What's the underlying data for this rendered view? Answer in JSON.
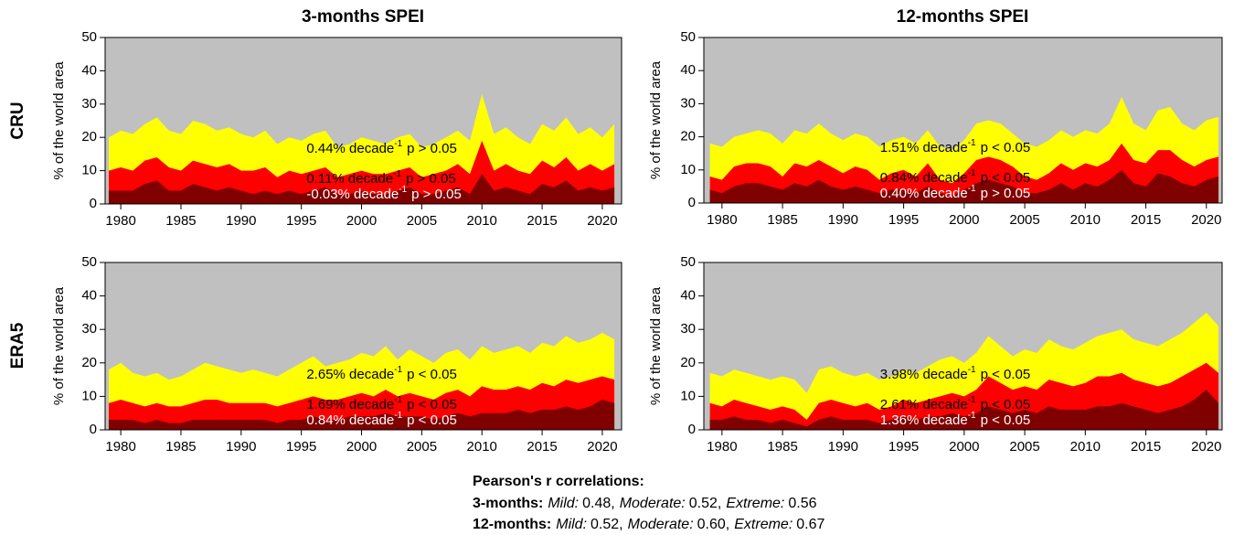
{
  "column_titles": [
    "3-months SPEI",
    "12-months SPEI"
  ],
  "row_labels": [
    "CRU",
    "ERA5"
  ],
  "footer": {
    "heading": "Pearson's r correlations:",
    "lines": [
      {
        "label": "3-months:",
        "items": [
          {
            "name": "Mild:",
            "value": "0.48"
          },
          {
            "name": "Moderate:",
            "value": "0.52"
          },
          {
            "name": "Extreme:",
            "value": "0.56"
          }
        ]
      },
      {
        "label": "12-months:",
        "items": [
          {
            "name": "Mild:",
            "value": "0.52"
          },
          {
            "name": "Moderate:",
            "value": "0.60"
          },
          {
            "name": "Extreme:",
            "value": "0.67"
          }
        ]
      }
    ]
  },
  "chart_data": [
    {
      "type": "area",
      "y_label": "% of the world area",
      "background": "#c0c0c0",
      "xlim": [
        1978.7,
        2021.6
      ],
      "xticks": [
        1980,
        1985,
        1990,
        1995,
        2000,
        2005,
        2010,
        2015,
        2020
      ],
      "ylim": [
        0,
        50
      ],
      "yticks": [
        0,
        10,
        20,
        30,
        40,
        50
      ],
      "x": [
        1979,
        1980,
        1981,
        1982,
        1983,
        1984,
        1985,
        1986,
        1987,
        1988,
        1989,
        1990,
        1991,
        1992,
        1993,
        1994,
        1995,
        1996,
        1997,
        1998,
        1999,
        2000,
        2001,
        2002,
        2003,
        2004,
        2005,
        2006,
        2007,
        2008,
        2009,
        2010,
        2011,
        2012,
        2013,
        2014,
        2015,
        2016,
        2017,
        2018,
        2019,
        2020,
        2021
      ],
      "series": [
        {
          "color": "#ffff00",
          "values": [
            20,
            22,
            21,
            24,
            26,
            22,
            21,
            25,
            24,
            22,
            23,
            21,
            20,
            22,
            18,
            20,
            19,
            21,
            22,
            17,
            18,
            20,
            19,
            18,
            20,
            21,
            17,
            18,
            20,
            22,
            19,
            33,
            21,
            23,
            20,
            18,
            24,
            22,
            26,
            21,
            23,
            20,
            24
          ]
        },
        {
          "color": "#ff0000",
          "values": [
            10,
            11,
            10,
            13,
            14,
            11,
            10,
            13,
            12,
            11,
            12,
            10,
            10,
            11,
            8,
            10,
            9,
            10,
            11,
            8,
            9,
            10,
            9,
            9,
            10,
            11,
            8,
            9,
            10,
            12,
            9,
            19,
            10,
            12,
            10,
            9,
            13,
            11,
            14,
            10,
            12,
            10,
            12
          ]
        },
        {
          "color": "#800000",
          "values": [
            4,
            4,
            4,
            6,
            7,
            4,
            4,
            6,
            5,
            4,
            5,
            4,
            3,
            4,
            3,
            4,
            3,
            4,
            5,
            3,
            3,
            4,
            3,
            3,
            4,
            5,
            3,
            3,
            4,
            5,
            3,
            9,
            4,
            5,
            4,
            3,
            6,
            5,
            7,
            4,
            5,
            4,
            5
          ]
        }
      ],
      "annotations": [
        {
          "text": "0.44% decade",
          "sup": "-1",
          "p": "p > 0.05",
          "color": "#000000"
        },
        {
          "text": "0.11% decade",
          "sup": "-1",
          "p": "p > 0.05",
          "color": "#000000"
        },
        {
          "text": "-0.03% decade",
          "sup": "-1",
          "p": "p > 0.05",
          "color": "#ffffff"
        }
      ]
    },
    {
      "type": "area",
      "y_label": "% of the world area",
      "background": "#c0c0c0",
      "xlim": [
        1978.5,
        2021.3
      ],
      "xticks": [
        1980,
        1985,
        1990,
        1995,
        2000,
        2005,
        2010,
        2015,
        2020
      ],
      "ylim": [
        0,
        50
      ],
      "yticks": [
        0,
        10,
        20,
        30,
        40,
        50
      ],
      "x": [
        1979,
        1980,
        1981,
        1982,
        1983,
        1984,
        1985,
        1986,
        1987,
        1988,
        1989,
        1990,
        1991,
        1992,
        1993,
        1994,
        1995,
        1996,
        1997,
        1998,
        1999,
        2000,
        2001,
        2002,
        2003,
        2004,
        2005,
        2006,
        2007,
        2008,
        2009,
        2010,
        2011,
        2012,
        2013,
        2014,
        2015,
        2016,
        2017,
        2018,
        2019,
        2020,
        2021
      ],
      "series": [
        {
          "color": "#ffff00",
          "values": [
            18,
            17,
            20,
            21,
            22,
            21,
            18,
            22,
            21,
            24,
            21,
            19,
            21,
            20,
            17,
            19,
            20,
            18,
            22,
            17,
            16,
            19,
            24,
            25,
            24,
            21,
            18,
            17,
            19,
            22,
            20,
            22,
            21,
            24,
            32,
            24,
            22,
            28,
            29,
            24,
            22,
            25,
            26
          ]
        },
        {
          "color": "#ff0000",
          "values": [
            8,
            7,
            11,
            12,
            12,
            11,
            8,
            12,
            11,
            13,
            11,
            9,
            11,
            10,
            7,
            9,
            10,
            8,
            12,
            7,
            6,
            9,
            13,
            14,
            13,
            11,
            8,
            7,
            9,
            12,
            10,
            12,
            11,
            13,
            18,
            13,
            12,
            16,
            16,
            13,
            11,
            13,
            14
          ]
        },
        {
          "color": "#800000",
          "values": [
            4,
            3,
            5,
            6,
            6,
            5,
            4,
            6,
            5,
            7,
            5,
            4,
            5,
            4,
            3,
            4,
            4,
            3,
            5,
            3,
            2,
            4,
            6,
            7,
            6,
            5,
            3,
            3,
            4,
            6,
            4,
            6,
            5,
            7,
            10,
            6,
            5,
            9,
            8,
            6,
            5,
            7,
            8
          ]
        }
      ],
      "annotations": [
        {
          "text": "1.51% decade",
          "sup": "-1",
          "p": "p < 0.05",
          "color": "#000000"
        },
        {
          "text": "0.84% decade",
          "sup": "-1",
          "p": "p < 0.05",
          "color": "#000000"
        },
        {
          "text": "0.40% decade",
          "sup": "-1",
          "p": "p > 0.05",
          "color": "#ffffff"
        }
      ]
    },
    {
      "type": "area",
      "y_label": "% of the world area",
      "background": "#c0c0c0",
      "xlim": [
        1978.7,
        2021.6
      ],
      "xticks": [
        1980,
        1985,
        1990,
        1995,
        2000,
        2005,
        2010,
        2015,
        2020
      ],
      "ylim": [
        0,
        50
      ],
      "yticks": [
        0,
        10,
        20,
        30,
        40,
        50
      ],
      "x": [
        1979,
        1980,
        1981,
        1982,
        1983,
        1984,
        1985,
        1986,
        1987,
        1988,
        1989,
        1990,
        1991,
        1992,
        1993,
        1994,
        1995,
        1996,
        1997,
        1998,
        1999,
        2000,
        2001,
        2002,
        2003,
        2004,
        2005,
        2006,
        2007,
        2008,
        2009,
        2010,
        2011,
        2012,
        2013,
        2014,
        2015,
        2016,
        2017,
        2018,
        2019,
        2020,
        2021
      ],
      "series": [
        {
          "color": "#ffff00",
          "values": [
            18,
            20,
            17,
            16,
            17,
            15,
            16,
            18,
            20,
            19,
            18,
            17,
            18,
            17,
            16,
            18,
            20,
            22,
            19,
            20,
            21,
            23,
            22,
            25,
            21,
            24,
            22,
            20,
            23,
            24,
            21,
            25,
            23,
            24,
            25,
            23,
            26,
            25,
            28,
            26,
            27,
            29,
            27
          ]
        },
        {
          "color": "#ff0000",
          "values": [
            8,
            9,
            8,
            7,
            8,
            7,
            7,
            8,
            9,
            9,
            8,
            8,
            8,
            8,
            7,
            8,
            9,
            10,
            9,
            9,
            10,
            11,
            10,
            12,
            10,
            11,
            10,
            9,
            11,
            12,
            10,
            13,
            12,
            12,
            13,
            12,
            14,
            13,
            15,
            14,
            15,
            16,
            15
          ]
        },
        {
          "color": "#800000",
          "values": [
            3,
            3,
            3,
            2,
            3,
            2,
            2,
            3,
            3,
            3,
            3,
            3,
            3,
            3,
            2,
            3,
            3,
            4,
            3,
            3,
            4,
            4,
            4,
            5,
            4,
            4,
            4,
            3,
            4,
            5,
            4,
            5,
            5,
            5,
            6,
            5,
            6,
            6,
            7,
            6,
            7,
            9,
            8
          ]
        }
      ],
      "annotations": [
        {
          "text": "2.65% decade",
          "sup": "-1",
          "p": "p < 0.05",
          "color": "#000000"
        },
        {
          "text": "1.69% decade",
          "sup": "-1",
          "p": "p < 0.05",
          "color": "#000000"
        },
        {
          "text": "0.84% decade",
          "sup": "-1",
          "p": "p < 0.05",
          "color": "#ffffff"
        }
      ]
    },
    {
      "type": "area",
      "y_label": "% of the world area",
      "background": "#c0c0c0",
      "xlim": [
        1978.5,
        2021.3
      ],
      "xticks": [
        1980,
        1985,
        1990,
        1995,
        2000,
        2005,
        2010,
        2015,
        2020
      ],
      "ylim": [
        0,
        50
      ],
      "yticks": [
        0,
        10,
        20,
        30,
        40,
        50
      ],
      "x": [
        1979,
        1980,
        1981,
        1982,
        1983,
        1984,
        1985,
        1986,
        1987,
        1988,
        1989,
        1990,
        1991,
        1992,
        1993,
        1994,
        1995,
        1996,
        1997,
        1998,
        1999,
        2000,
        2001,
        2002,
        2003,
        2004,
        2005,
        2006,
        2007,
        2008,
        2009,
        2010,
        2011,
        2012,
        2013,
        2014,
        2015,
        2016,
        2017,
        2018,
        2019,
        2020,
        2021
      ],
      "series": [
        {
          "color": "#ffff00",
          "values": [
            17,
            16,
            18,
            17,
            16,
            15,
            16,
            15,
            11,
            18,
            19,
            17,
            16,
            17,
            15,
            16,
            18,
            17,
            19,
            21,
            22,
            20,
            23,
            28,
            25,
            22,
            24,
            23,
            27,
            25,
            24,
            26,
            28,
            29,
            30,
            27,
            26,
            25,
            27,
            29,
            32,
            35,
            31
          ]
        },
        {
          "color": "#ff0000",
          "values": [
            8,
            7,
            9,
            8,
            7,
            6,
            7,
            6,
            3,
            8,
            9,
            8,
            7,
            8,
            6,
            7,
            9,
            8,
            9,
            10,
            11,
            10,
            12,
            16,
            14,
            12,
            13,
            12,
            15,
            14,
            13,
            14,
            16,
            16,
            17,
            15,
            14,
            13,
            14,
            16,
            18,
            20,
            17
          ]
        },
        {
          "color": "#800000",
          "values": [
            3,
            3,
            4,
            3,
            3,
            2,
            3,
            2,
            1,
            3,
            4,
            3,
            3,
            3,
            2,
            3,
            4,
            3,
            4,
            4,
            5,
            4,
            5,
            7,
            6,
            5,
            6,
            5,
            7,
            6,
            6,
            6,
            7,
            7,
            8,
            7,
            6,
            5,
            6,
            7,
            9,
            12,
            8
          ]
        }
      ],
      "annotations": [
        {
          "text": "3.98% decade",
          "sup": "-1",
          "p": "p < 0.05",
          "color": "#000000"
        },
        {
          "text": "2.61% decade",
          "sup": "-1",
          "p": "p < 0.05",
          "color": "#000000"
        },
        {
          "text": "1.36% decade",
          "sup": "-1",
          "p": "p < 0.05",
          "color": "#ffffff"
        }
      ]
    }
  ]
}
